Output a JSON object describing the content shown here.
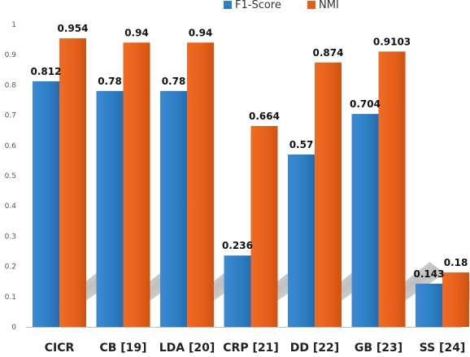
{
  "chart_data": {
    "type": "bar",
    "title": "",
    "xlabel": "",
    "ylabel": "",
    "categories": [
      "CICR",
      "CB [19]",
      "LDA [20]",
      "CRP [21]",
      "DD [22]",
      "GB [23]",
      "SS [24]"
    ],
    "series": [
      {
        "name": "F1-Score",
        "color": "#2e7ec5",
        "values": [
          0.812,
          0.78,
          0.78,
          0.236,
          0.57,
          0.704,
          0.143
        ],
        "labels": [
          "0.812",
          "0.78",
          "0.78",
          "0.236",
          "0.57",
          "0.704",
          "0.143"
        ]
      },
      {
        "name": "NMI",
        "color": "#e7601a",
        "values": [
          0.954,
          0.94,
          0.94,
          0.664,
          0.874,
          0.9103,
          0.18
        ],
        "labels": [
          "0.954",
          "0.94",
          "0.94",
          "0.664",
          "0.874",
          "0.9103",
          "0.18"
        ]
      }
    ],
    "ylim": [
      0,
      1
    ],
    "yticks": [
      "0",
      "0.1",
      "0.2",
      "0.3",
      "0.4",
      "0.5",
      "0.6",
      "0.7",
      "0.8",
      "0.9",
      "1"
    ],
    "grid": false,
    "legend": "top-right"
  }
}
